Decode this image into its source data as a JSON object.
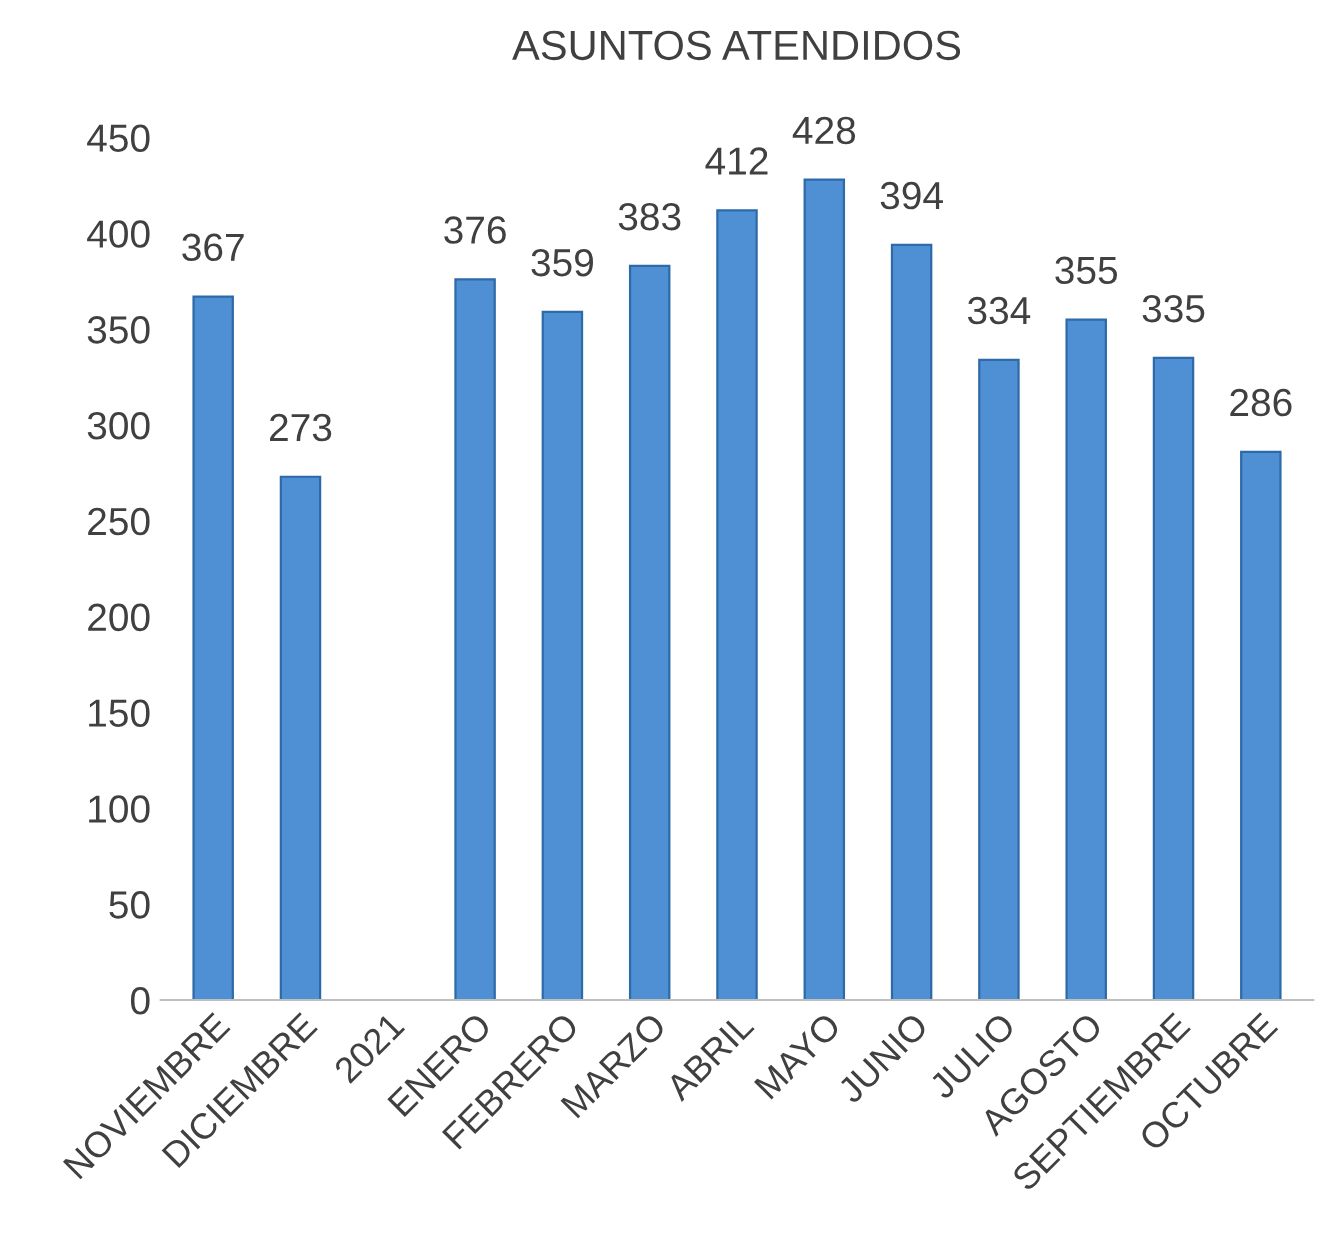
{
  "chart_data": {
    "type": "bar",
    "title": "ASUNTOS ATENDIDOS",
    "categories": [
      "NOVIEMBRE",
      "DICIEMBRE",
      "2021",
      "ENERO",
      "FEBRERO",
      "MARZO",
      "ABRIL",
      "MAYO",
      "JUNIO",
      "JULIO",
      "AGOSTO",
      "SEPTIEMBRE",
      "OCTUBRE"
    ],
    "values": [
      367,
      273,
      null,
      376,
      359,
      383,
      412,
      428,
      394,
      334,
      355,
      335,
      286
    ],
    "color": "#4f8fd4",
    "ylim": [
      0,
      450
    ],
    "yticks": [
      0,
      50,
      100,
      150,
      200,
      250,
      300,
      350,
      400,
      450
    ],
    "data_labels": true,
    "grid": false
  }
}
